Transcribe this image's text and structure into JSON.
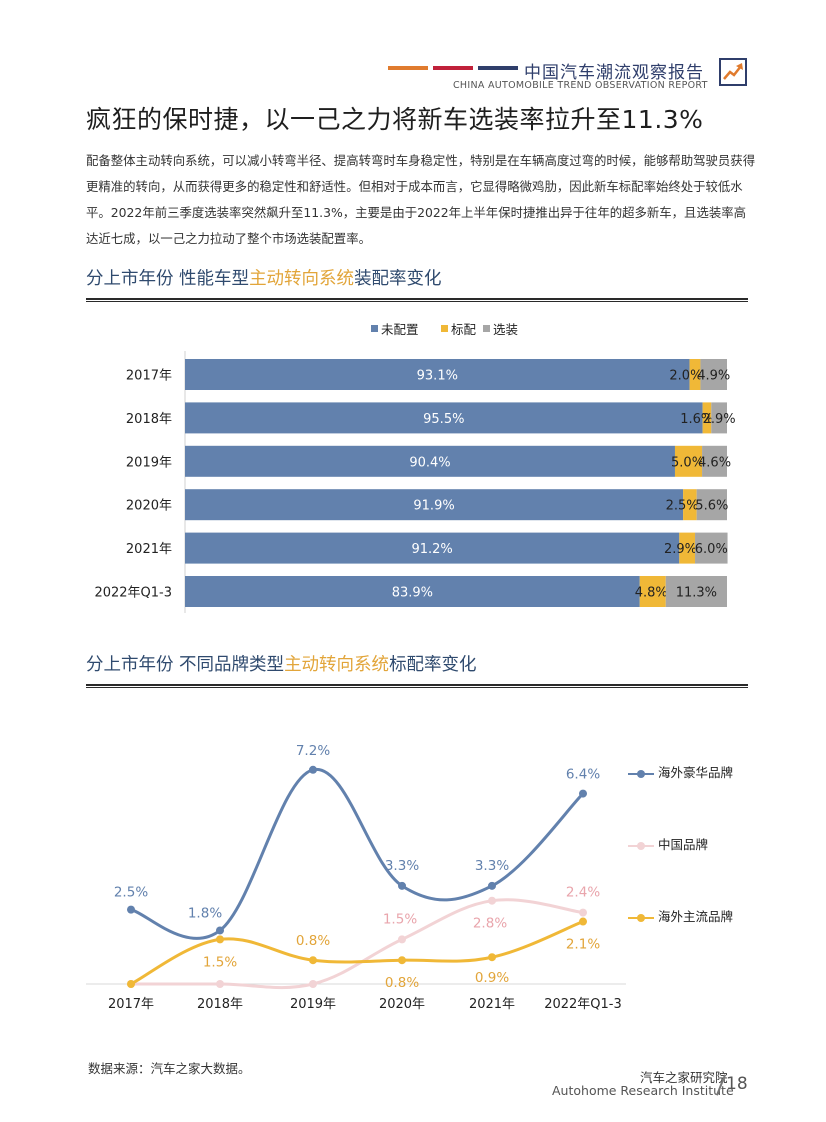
{
  "header": {
    "title": "中国汽车潮流观察报告",
    "subtitle": "CHINA AUTOMOBILE TREND OBSERVATION REPORT",
    "bar_colors": [
      "#e07b2e",
      "#c0213a",
      "#2f3e6b"
    ],
    "icon": "trend-up-icon"
  },
  "page_title": "疯狂的保时捷，以一己之力将新车选装率拉升至11.3%",
  "body_text": "配备整体主动转向系统，可以减小转弯半径、提高转弯时车身稳定性，特别是在车辆高度过弯的时候，能够帮助驾驶员获得更精准的转向，从而获得更多的稳定性和舒适性。但相对于成本而言，它显得略微鸡肋，因此新车标配率始终处于较低水平。2022年前三季度选装率突然飙升至11.3%，主要是由于2022年上半年保时捷推出异于往年的超多新车，且选装率高达近七成，以一己之力拉动了整个市场选装配置率。",
  "section1": {
    "prefix": "分上市年份  性能车型",
    "highlight": "主动转向系统",
    "suffix": "装配率变化"
  },
  "section2": {
    "prefix": "分上市年份  不同品牌类型",
    "highlight": "主动转向系统",
    "suffix": "标配率变化"
  },
  "chart_data": [
    {
      "type": "bar",
      "stacked": true,
      "orientation": "horizontal",
      "title": "",
      "categories": [
        "2017年",
        "2018年",
        "2019年",
        "2020年",
        "2021年",
        "2022年Q1-3"
      ],
      "series": [
        {
          "name": "未配置",
          "color": "#6281ad",
          "values": [
            93.1,
            95.5,
            90.4,
            91.9,
            91.2,
            83.9
          ]
        },
        {
          "name": "标配",
          "color": "#f0b837",
          "values": [
            2.0,
            1.6,
            5.0,
            2.5,
            2.9,
            4.8
          ]
        },
        {
          "name": "选装",
          "color": "#a6a6a6",
          "values": [
            4.9,
            2.9,
            4.6,
            5.6,
            6.0,
            11.3
          ]
        }
      ],
      "value_suffix": "%",
      "xlim": [
        0,
        100
      ],
      "legend_position": "top-center"
    },
    {
      "type": "line",
      "title": "",
      "categories": [
        "2017年",
        "2018年",
        "2019年",
        "2020年",
        "2021年",
        "2022年Q1-3"
      ],
      "series": [
        {
          "name": "海外豪华品牌",
          "color": "#6281ad",
          "values": [
            2.5,
            1.8,
            7.2,
            3.3,
            3.3,
            6.4
          ]
        },
        {
          "name": "中国品牌",
          "color": "#f2d3d5",
          "values": [
            0.0,
            0.0,
            0.0,
            1.5,
            2.8,
            2.4
          ]
        },
        {
          "name": "海外主流品牌",
          "color": "#f0b837",
          "values": [
            0.0,
            1.5,
            0.8,
            0.8,
            0.9,
            2.1
          ]
        }
      ],
      "labels": [
        {
          "text": "2.5%",
          "color": "#6281ad"
        },
        {
          "text": "1.8%",
          "color": "#6281ad"
        },
        {
          "text": "7.2%",
          "color": "#6281ad"
        },
        {
          "text": "3.3%",
          "color": "#6281ad"
        },
        {
          "text": "3.3%",
          "color": "#6281ad"
        },
        {
          "text": "6.4%",
          "color": "#6281ad"
        },
        {
          "text": "1.5%",
          "color": "#e9a5ac"
        },
        {
          "text": "2.8%",
          "color": "#e9a5ac"
        },
        {
          "text": "2.4%",
          "color": "#e9a5ac"
        },
        {
          "text": "1.5%",
          "color": "#e2a53a"
        },
        {
          "text": "0.8%",
          "color": "#e2a53a"
        },
        {
          "text": "0.8%",
          "color": "#e2a53a"
        },
        {
          "text": "0.9%",
          "color": "#e2a53a"
        },
        {
          "text": "2.1%",
          "color": "#e2a53a"
        }
      ],
      "ylim": [
        0,
        8
      ],
      "legend_position": "right"
    }
  ],
  "source": "数据来源：汽车之家大数据。",
  "footer": {
    "org_cn": "汽车之家研究院",
    "org_en": "Autohome Research Institute",
    "page_number": "18"
  }
}
